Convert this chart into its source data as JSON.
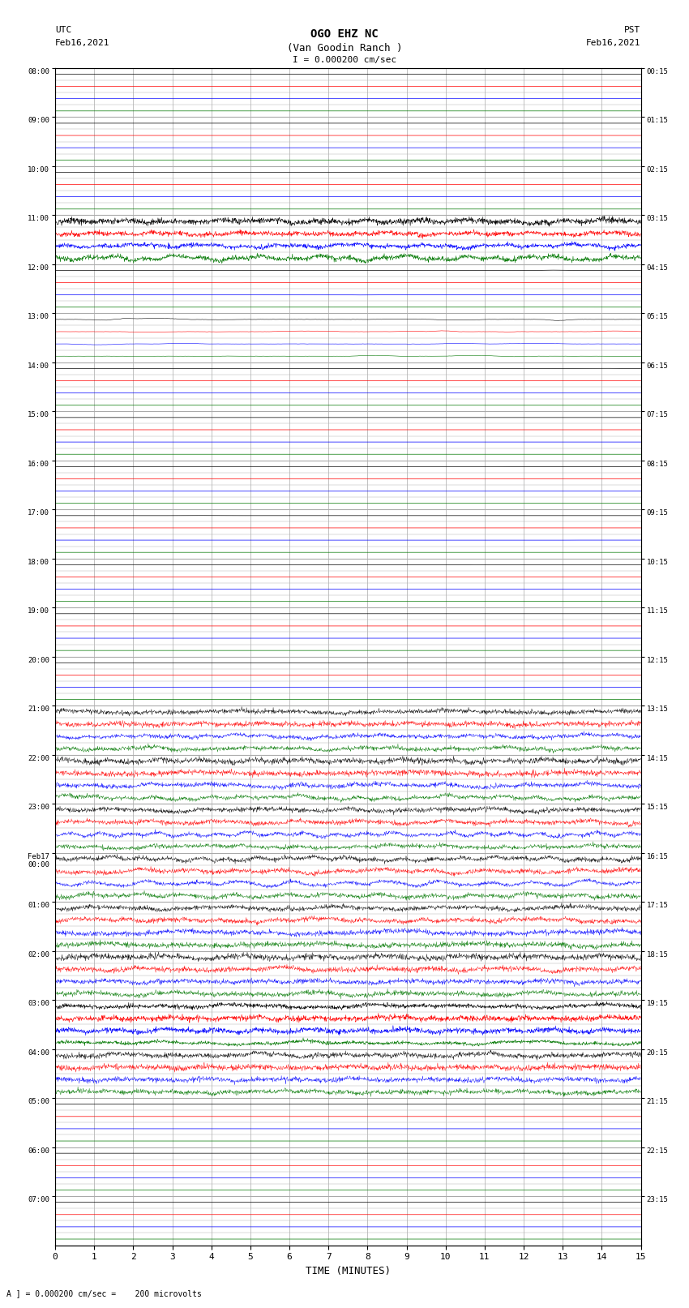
{
  "title_line1": "OGO EHZ NC",
  "title_line2": "(Van Goodin Ranch )",
  "title_line3": "I = 0.000200 cm/sec",
  "left_label_top": "UTC",
  "left_label_date": "Feb16,2021",
  "right_label_top": "PST",
  "right_label_date": "Feb16,2021",
  "xlabel": "TIME (MINUTES)",
  "bottom_note": "A ] = 0.000200 cm/sec =    200 microvolts",
  "utc_times": [
    "08:00",
    "09:00",
    "10:00",
    "11:00",
    "12:00",
    "13:00",
    "14:00",
    "15:00",
    "16:00",
    "17:00",
    "18:00",
    "19:00",
    "20:00",
    "21:00",
    "22:00",
    "23:00",
    "Feb17\n00:00",
    "01:00",
    "02:00",
    "03:00",
    "04:00",
    "05:00",
    "06:00",
    "07:00"
  ],
  "pst_times": [
    "00:15",
    "01:15",
    "02:15",
    "03:15",
    "04:15",
    "05:15",
    "06:15",
    "07:15",
    "08:15",
    "09:15",
    "10:15",
    "11:15",
    "12:15",
    "13:15",
    "14:15",
    "15:15",
    "16:15",
    "17:15",
    "18:15",
    "19:15",
    "20:15",
    "21:15",
    "22:15",
    "23:15"
  ],
  "n_rows": 24,
  "n_sub": 4,
  "minutes": 15,
  "trace_colors": [
    "#000000",
    "#ff0000",
    "#0000ff",
    "#007700"
  ],
  "colors": {
    "black": "#000000",
    "red": "#ff0000",
    "green": "#007700",
    "blue": "#0000ff",
    "background": "#ffffff",
    "grid": "#aaaaaa"
  },
  "figsize": [
    8.5,
    16.13
  ],
  "dpi": 100,
  "activity": [
    0.008,
    0.12,
    0.03,
    1.0,
    0.35,
    0.7,
    0.25,
    0.04,
    0.18,
    0.22,
    0.28,
    0.08,
    0.22,
    2.5,
    3.0,
    3.0,
    3.0,
    2.8,
    2.8,
    1.2,
    2.2,
    0.04,
    0.04,
    0.18
  ],
  "row_sub_activity_scale": [
    1.0,
    0.9,
    0.85,
    0.8
  ]
}
